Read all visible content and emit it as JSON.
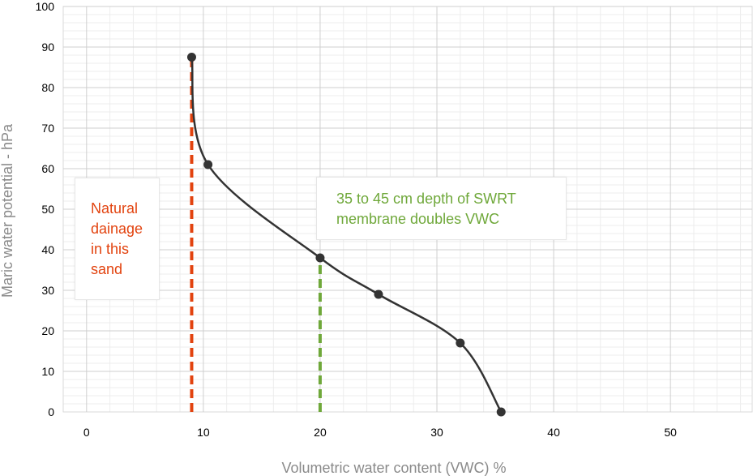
{
  "chart_data": {
    "type": "scatter",
    "title": "",
    "xlabel": "Volumetric water content (VWC) %",
    "ylabel": "Maric water potential - hPa",
    "xlim": [
      -2,
      57
    ],
    "ylim": [
      0,
      100
    ],
    "x_ticks": [
      "0",
      "10",
      "20",
      "30",
      "40",
      "50"
    ],
    "y_ticks": [
      "0",
      "10",
      "20",
      "30",
      "40",
      "50",
      "60",
      "70",
      "80",
      "90",
      "100"
    ],
    "grid": true,
    "series": [
      {
        "x": [
          9,
          10.4,
          20,
          25,
          32,
          35.5
        ],
        "y": [
          87.5,
          61,
          38,
          29,
          17,
          0
        ],
        "smooth_line": true,
        "color": "#333333"
      }
    ],
    "reference_lines": [
      {
        "x": 9,
        "y_from": 0,
        "y_to": 87.5,
        "style": "dashed",
        "color": "#e2430f"
      },
      {
        "x": 20,
        "y_from": 0,
        "y_to": 38,
        "style": "dashed",
        "color": "#6fa83a"
      }
    ],
    "annotations": [
      {
        "lines": [
          "Natural",
          "dainage",
          "in this",
          "sand"
        ],
        "color": "#e2430f"
      },
      {
        "lines": [
          "35 to 45 cm depth of SWRT",
          "membrane doubles VWC"
        ],
        "color": "#6fa83a"
      }
    ]
  }
}
